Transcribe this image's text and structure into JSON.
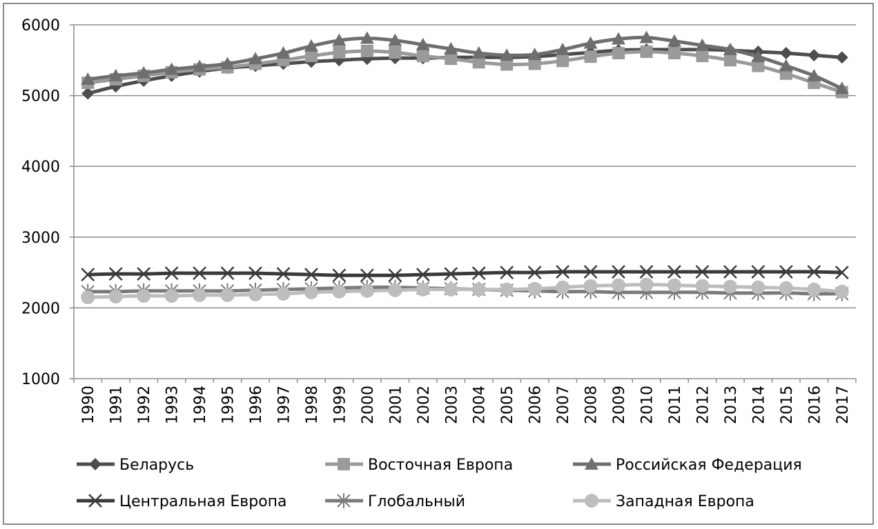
{
  "chart_data": {
    "type": "line",
    "title": "",
    "xlabel": "",
    "ylabel": "",
    "ylim": [
      1000,
      6000
    ],
    "yticks": [
      1000,
      2000,
      3000,
      4000,
      5000,
      6000
    ],
    "grid": "horizontal",
    "legend_position": "bottom",
    "x": [
      "1990",
      "1991",
      "1992",
      "1993",
      "1994",
      "1995",
      "1996",
      "1997",
      "1998",
      "1999",
      "2000",
      "2001",
      "2002",
      "2003",
      "2004",
      "2005",
      "2006",
      "2007",
      "2008",
      "2009",
      "2010",
      "2011",
      "2012",
      "2013",
      "2014",
      "2015",
      "2016",
      "2017"
    ],
    "series": [
      {
        "name": "Беларусь",
        "color": "#4d4d4d",
        "marker": "diamond",
        "values": [
          5030,
          5130,
          5210,
          5280,
          5340,
          5390,
          5420,
          5450,
          5480,
          5500,
          5520,
          5530,
          5530,
          5540,
          5540,
          5540,
          5550,
          5580,
          5610,
          5640,
          5650,
          5650,
          5650,
          5640,
          5620,
          5600,
          5570,
          5540
        ]
      },
      {
        "name": "Восточная Европа",
        "color": "#9a9a9a",
        "marker": "square",
        "values": [
          5180,
          5230,
          5280,
          5330,
          5370,
          5400,
          5450,
          5500,
          5560,
          5610,
          5630,
          5610,
          5560,
          5520,
          5470,
          5440,
          5450,
          5490,
          5550,
          5600,
          5620,
          5600,
          5560,
          5500,
          5420,
          5310,
          5180,
          5050
        ]
      },
      {
        "name": "Российская Федерация",
        "color": "#6e6e6e",
        "marker": "triangle",
        "values": [
          5230,
          5280,
          5320,
          5370,
          5410,
          5450,
          5520,
          5600,
          5700,
          5780,
          5810,
          5780,
          5720,
          5660,
          5600,
          5570,
          5580,
          5650,
          5740,
          5800,
          5820,
          5770,
          5710,
          5650,
          5550,
          5420,
          5280,
          5100
        ]
      },
      {
        "name": "Центральная Европа",
        "color": "#3a3a3a",
        "marker": "x",
        "values": [
          2470,
          2480,
          2480,
          2490,
          2490,
          2490,
          2490,
          2480,
          2470,
          2460,
          2460,
          2460,
          2470,
          2480,
          2490,
          2500,
          2500,
          2510,
          2510,
          2510,
          2510,
          2510,
          2510,
          2510,
          2510,
          2510,
          2510,
          2500
        ]
      },
      {
        "name": "Глобальный",
        "color": "#7a7a7a",
        "marker": "star",
        "values": [
          2230,
          2230,
          2240,
          2240,
          2240,
          2240,
          2250,
          2260,
          2270,
          2280,
          2290,
          2290,
          2280,
          2270,
          2260,
          2250,
          2240,
          2230,
          2230,
          2220,
          2220,
          2220,
          2220,
          2210,
          2210,
          2210,
          2200,
          2200
        ]
      },
      {
        "name": "Западная Европа",
        "color": "#bdbdbd",
        "marker": "circle",
        "values": [
          2150,
          2160,
          2170,
          2170,
          2180,
          2180,
          2190,
          2200,
          2220,
          2230,
          2240,
          2250,
          2260,
          2260,
          2260,
          2260,
          2270,
          2290,
          2310,
          2320,
          2330,
          2320,
          2310,
          2300,
          2290,
          2280,
          2260,
          2230
        ]
      }
    ]
  }
}
